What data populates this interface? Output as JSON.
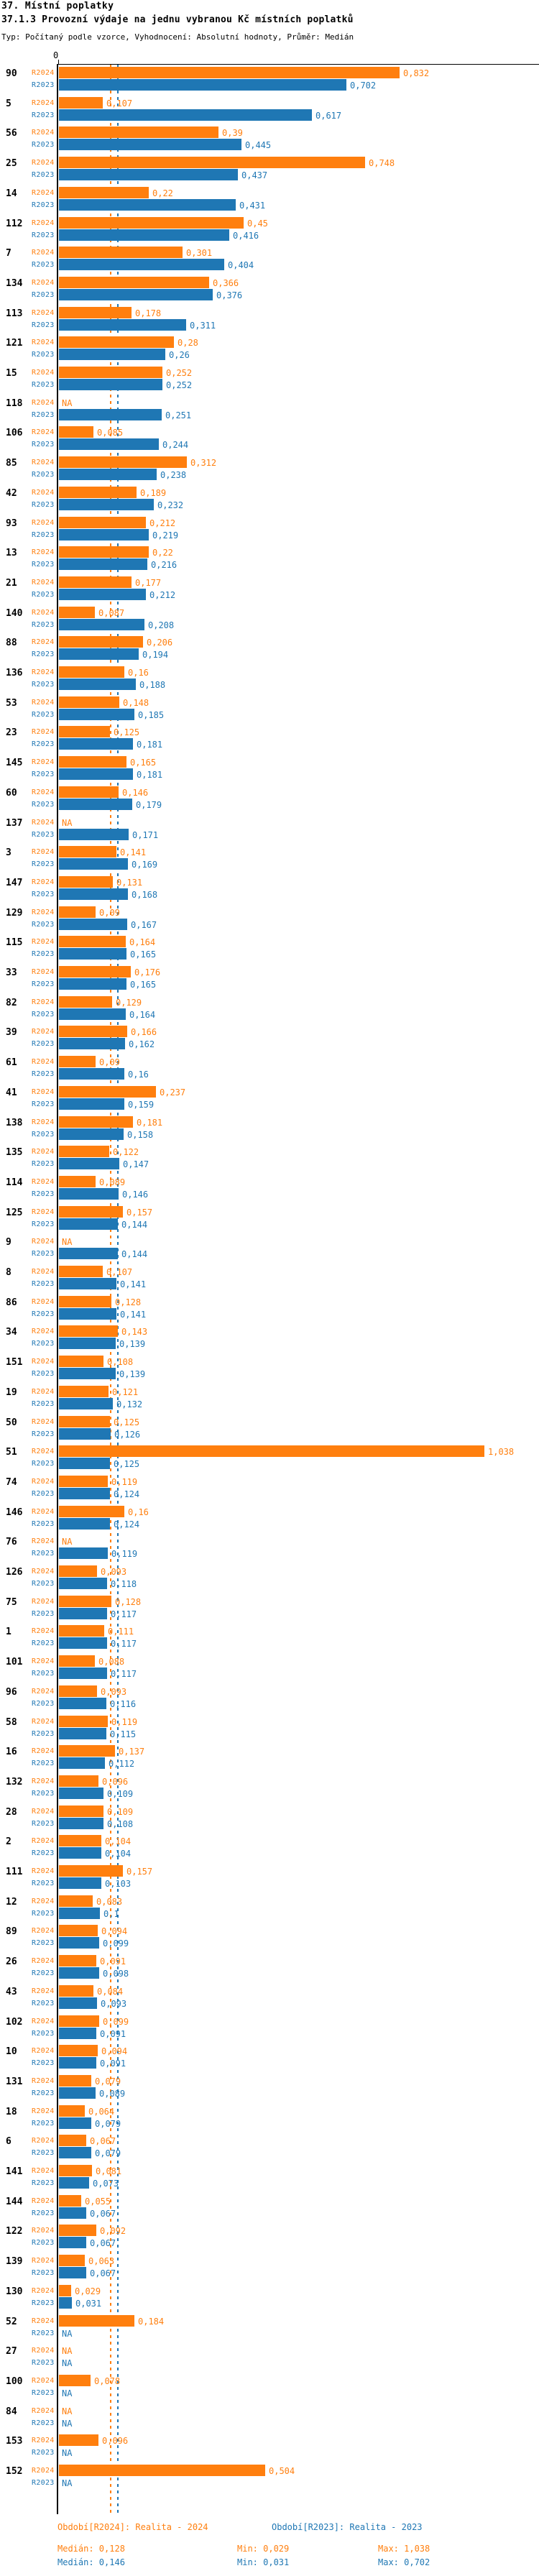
{
  "header": {
    "title": "37. Místní poplatky",
    "subtitle": "37.1.3 Provozní výdaje na jednu vybranou Kč místních poplatků",
    "meta": "Typ: Počítaný podle vzorce, Vyhodnocení: Absolutní hodnoty, Průměr: Medián"
  },
  "axis": {
    "zero_label": "0"
  },
  "colors": {
    "r2024": "#ff7f0e",
    "r2023": "#1f77b4",
    "axis": "#000000"
  },
  "legend": {
    "r2024": {
      "period": "Období[R2024]: Realita - 2024",
      "median": "Medián: 0,128",
      "min": "Min: 0,029",
      "max": "Max: 1,038"
    },
    "r2023": {
      "period": "Období[R2023]: Realita - 2023",
      "median": "Medián: 0,146",
      "min": "Min: 0,031",
      "max": "Max: 0,702"
    }
  },
  "chart_data": {
    "type": "bar",
    "orientation": "horizontal",
    "title": "37.1.3 Provozní výdaje na jednu vybranou Kč místních poplatků",
    "series_labels": [
      "R2024",
      "R2023"
    ],
    "xlim": [
      0,
      1.1
    ],
    "grid": false,
    "median_lines": {
      "r2024": 0.128,
      "r2023": 0.146
    },
    "na_label": "NA",
    "groups": [
      {
        "id": "90",
        "v2024": 0.832,
        "l2024": "0,832",
        "v2023": 0.702,
        "l2023": "0,702"
      },
      {
        "id": "5",
        "v2024": 0.107,
        "l2024": "0,107",
        "v2023": 0.617,
        "l2023": "0,617"
      },
      {
        "id": "56",
        "v2024": 0.39,
        "l2024": "0,39",
        "v2023": 0.445,
        "l2023": "0,445"
      },
      {
        "id": "25",
        "v2024": 0.748,
        "l2024": "0,748",
        "v2023": 0.437,
        "l2023": "0,437"
      },
      {
        "id": "14",
        "v2024": 0.22,
        "l2024": "0,22",
        "v2023": 0.431,
        "l2023": "0,431"
      },
      {
        "id": "112",
        "v2024": 0.45,
        "l2024": "0,45",
        "v2023": 0.416,
        "l2023": "0,416"
      },
      {
        "id": "7",
        "v2024": 0.301,
        "l2024": "0,301",
        "v2023": 0.404,
        "l2023": "0,404"
      },
      {
        "id": "134",
        "v2024": 0.366,
        "l2024": "0,366",
        "v2023": 0.376,
        "l2023": "0,376"
      },
      {
        "id": "113",
        "v2024": 0.178,
        "l2024": "0,178",
        "v2023": 0.311,
        "l2023": "0,311"
      },
      {
        "id": "121",
        "v2024": 0.28,
        "l2024": "0,28",
        "v2023": 0.26,
        "l2023": "0,26"
      },
      {
        "id": "15",
        "v2024": 0.252,
        "l2024": "0,252",
        "v2023": 0.252,
        "l2023": "0,252"
      },
      {
        "id": "118",
        "v2024": null,
        "l2024": "NA",
        "v2023": 0.251,
        "l2023": "0,251"
      },
      {
        "id": "106",
        "v2024": 0.085,
        "l2024": "0,085",
        "v2023": 0.244,
        "l2023": "0,244"
      },
      {
        "id": "85",
        "v2024": 0.312,
        "l2024": "0,312",
        "v2023": 0.238,
        "l2023": "0,238"
      },
      {
        "id": "42",
        "v2024": 0.189,
        "l2024": "0,189",
        "v2023": 0.232,
        "l2023": "0,232"
      },
      {
        "id": "93",
        "v2024": 0.212,
        "l2024": "0,212",
        "v2023": 0.219,
        "l2023": "0,219"
      },
      {
        "id": "13",
        "v2024": 0.22,
        "l2024": "0,22",
        "v2023": 0.216,
        "l2023": "0,216"
      },
      {
        "id": "21",
        "v2024": 0.177,
        "l2024": "0,177",
        "v2023": 0.212,
        "l2023": "0,212"
      },
      {
        "id": "140",
        "v2024": 0.087,
        "l2024": "0,087",
        "v2023": 0.208,
        "l2023": "0,208"
      },
      {
        "id": "88",
        "v2024": 0.206,
        "l2024": "0,206",
        "v2023": 0.194,
        "l2023": "0,194"
      },
      {
        "id": "136",
        "v2024": 0.16,
        "l2024": "0,16",
        "v2023": 0.188,
        "l2023": "0,188"
      },
      {
        "id": "53",
        "v2024": 0.148,
        "l2024": "0,148",
        "v2023": 0.185,
        "l2023": "0,185"
      },
      {
        "id": "23",
        "v2024": 0.125,
        "l2024": "0,125",
        "v2023": 0.181,
        "l2023": "0,181"
      },
      {
        "id": "145",
        "v2024": 0.165,
        "l2024": "0,165",
        "v2023": 0.181,
        "l2023": "0,181"
      },
      {
        "id": "60",
        "v2024": 0.146,
        "l2024": "0,146",
        "v2023": 0.179,
        "l2023": "0,179"
      },
      {
        "id": "137",
        "v2024": null,
        "l2024": "NA",
        "v2023": 0.171,
        "l2023": "0,171"
      },
      {
        "id": "3",
        "v2024": 0.141,
        "l2024": "0,141",
        "v2023": 0.169,
        "l2023": "0,169"
      },
      {
        "id": "147",
        "v2024": 0.131,
        "l2024": "0,131",
        "v2023": 0.168,
        "l2023": "0,168"
      },
      {
        "id": "129",
        "v2024": 0.09,
        "l2024": "0,09",
        "v2023": 0.167,
        "l2023": "0,167"
      },
      {
        "id": "115",
        "v2024": 0.164,
        "l2024": "0,164",
        "v2023": 0.165,
        "l2023": "0,165"
      },
      {
        "id": "33",
        "v2024": 0.176,
        "l2024": "0,176",
        "v2023": 0.165,
        "l2023": "0,165"
      },
      {
        "id": "82",
        "v2024": 0.129,
        "l2024": "0,129",
        "v2023": 0.164,
        "l2023": "0,164"
      },
      {
        "id": "39",
        "v2024": 0.166,
        "l2024": "0,166",
        "v2023": 0.162,
        "l2023": "0,162"
      },
      {
        "id": "61",
        "v2024": 0.09,
        "l2024": "0,09",
        "v2023": 0.16,
        "l2023": "0,16"
      },
      {
        "id": "41",
        "v2024": 0.237,
        "l2024": "0,237",
        "v2023": 0.159,
        "l2023": "0,159"
      },
      {
        "id": "138",
        "v2024": 0.181,
        "l2024": "0,181",
        "v2023": 0.158,
        "l2023": "0,158"
      },
      {
        "id": "135",
        "v2024": 0.122,
        "l2024": "0,122",
        "v2023": 0.147,
        "l2023": "0,147"
      },
      {
        "id": "114",
        "v2024": 0.089,
        "l2024": "0,089",
        "v2023": 0.146,
        "l2023": "0,146"
      },
      {
        "id": "125",
        "v2024": 0.157,
        "l2024": "0,157",
        "v2023": 0.144,
        "l2023": "0,144"
      },
      {
        "id": "9",
        "v2024": null,
        "l2024": "NA",
        "v2023": 0.144,
        "l2023": "0,144"
      },
      {
        "id": "8",
        "v2024": 0.107,
        "l2024": "0,107",
        "v2023": 0.141,
        "l2023": "0,141"
      },
      {
        "id": "86",
        "v2024": 0.128,
        "l2024": "0,128",
        "v2023": 0.141,
        "l2023": "0,141"
      },
      {
        "id": "34",
        "v2024": 0.143,
        "l2024": "0,143",
        "v2023": 0.139,
        "l2023": "0,139"
      },
      {
        "id": "151",
        "v2024": 0.108,
        "l2024": "0,108",
        "v2023": 0.139,
        "l2023": "0,139"
      },
      {
        "id": "19",
        "v2024": 0.121,
        "l2024": "0,121",
        "v2023": 0.132,
        "l2023": "0,132"
      },
      {
        "id": "50",
        "v2024": 0.125,
        "l2024": "0,125",
        "v2023": 0.126,
        "l2023": "0,126"
      },
      {
        "id": "51",
        "v2024": 1.038,
        "l2024": "1,038",
        "v2023": 0.125,
        "l2023": "0,125"
      },
      {
        "id": "74",
        "v2024": 0.119,
        "l2024": "0,119",
        "v2023": 0.124,
        "l2023": "0,124"
      },
      {
        "id": "146",
        "v2024": 0.16,
        "l2024": "0,16",
        "v2023": 0.124,
        "l2023": "0,124"
      },
      {
        "id": "76",
        "v2024": null,
        "l2024": "NA",
        "v2023": 0.119,
        "l2023": "0,119"
      },
      {
        "id": "126",
        "v2024": 0.093,
        "l2024": "0,093",
        "v2023": 0.118,
        "l2023": "0,118"
      },
      {
        "id": "75",
        "v2024": 0.128,
        "l2024": "0,128",
        "v2023": 0.117,
        "l2023": "0,117"
      },
      {
        "id": "1",
        "v2024": 0.111,
        "l2024": "0,111",
        "v2023": 0.117,
        "l2023": "0,117"
      },
      {
        "id": "101",
        "v2024": 0.088,
        "l2024": "0,088",
        "v2023": 0.117,
        "l2023": "0,117"
      },
      {
        "id": "96",
        "v2024": 0.093,
        "l2024": "0,093",
        "v2023": 0.116,
        "l2023": "0,116"
      },
      {
        "id": "58",
        "v2024": 0.119,
        "l2024": "0,119",
        "v2023": 0.115,
        "l2023": "0,115"
      },
      {
        "id": "16",
        "v2024": 0.137,
        "l2024": "0,137",
        "v2023": 0.112,
        "l2023": "0,112"
      },
      {
        "id": "132",
        "v2024": 0.096,
        "l2024": "0,096",
        "v2023": 0.109,
        "l2023": "0,109"
      },
      {
        "id": "28",
        "v2024": 0.109,
        "l2024": "0,109",
        "v2023": 0.108,
        "l2023": "0,108"
      },
      {
        "id": "2",
        "v2024": 0.104,
        "l2024": "0,104",
        "v2023": 0.104,
        "l2023": "0,104"
      },
      {
        "id": "111",
        "v2024": 0.157,
        "l2024": "0,157",
        "v2023": 0.103,
        "l2023": "0,103"
      },
      {
        "id": "12",
        "v2024": 0.083,
        "l2024": "0,083",
        "v2023": 0.1,
        "l2023": "0,1"
      },
      {
        "id": "89",
        "v2024": 0.094,
        "l2024": "0,094",
        "v2023": 0.099,
        "l2023": "0,099"
      },
      {
        "id": "26",
        "v2024": 0.091,
        "l2024": "0,091",
        "v2023": 0.098,
        "l2023": "0,098"
      },
      {
        "id": "43",
        "v2024": 0.084,
        "l2024": "0,084",
        "v2023": 0.093,
        "l2023": "0,093"
      },
      {
        "id": "102",
        "v2024": 0.099,
        "l2024": "0,099",
        "v2023": 0.091,
        "l2023": "0,091"
      },
      {
        "id": "10",
        "v2024": 0.094,
        "l2024": "0,094",
        "v2023": 0.091,
        "l2023": "0,091"
      },
      {
        "id": "131",
        "v2024": 0.079,
        "l2024": "0,079",
        "v2023": 0.089,
        "l2023": "0,089"
      },
      {
        "id": "18",
        "v2024": 0.064,
        "l2024": "0,064",
        "v2023": 0.079,
        "l2023": "0,079"
      },
      {
        "id": "6",
        "v2024": 0.067,
        "l2024": "0,067",
        "v2023": 0.079,
        "l2023": "0,079"
      },
      {
        "id": "141",
        "v2024": 0.081,
        "l2024": "0,081",
        "v2023": 0.073,
        "l2023": "0,073"
      },
      {
        "id": "144",
        "v2024": 0.055,
        "l2024": "0,055",
        "v2023": 0.067,
        "l2023": "0,067"
      },
      {
        "id": "122",
        "v2024": 0.092,
        "l2024": "0,092",
        "v2023": 0.067,
        "l2023": "0,067"
      },
      {
        "id": "139",
        "v2024": 0.063,
        "l2024": "0,063",
        "v2023": 0.067,
        "l2023": "0,067"
      },
      {
        "id": "130",
        "v2024": 0.029,
        "l2024": "0,029",
        "v2023": 0.031,
        "l2023": "0,031"
      },
      {
        "id": "52",
        "v2024": 0.184,
        "l2024": "0,184",
        "v2023": null,
        "l2023": "NA"
      },
      {
        "id": "27",
        "v2024": null,
        "l2024": "NA",
        "v2023": null,
        "l2023": "NA"
      },
      {
        "id": "100",
        "v2024": 0.078,
        "l2024": "0,078",
        "v2023": null,
        "l2023": "NA"
      },
      {
        "id": "84",
        "v2024": null,
        "l2024": "NA",
        "v2023": null,
        "l2023": "NA"
      },
      {
        "id": "153",
        "v2024": 0.096,
        "l2024": "0,096",
        "v2023": null,
        "l2023": "NA"
      },
      {
        "id": "152",
        "v2024": 0.504,
        "l2024": "0,504",
        "v2023": null,
        "l2023": "NA"
      }
    ]
  }
}
